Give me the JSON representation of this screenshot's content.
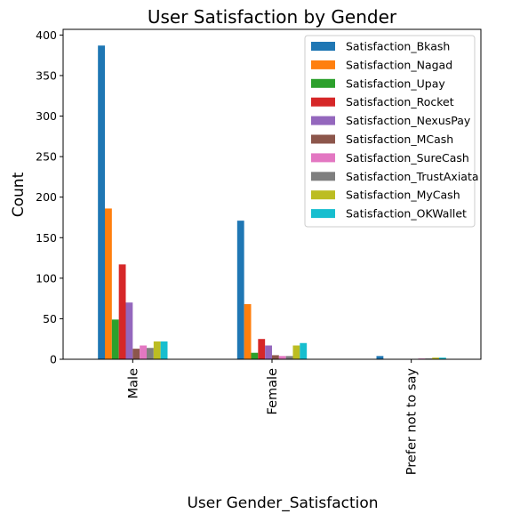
{
  "chart_data": {
    "type": "bar",
    "title": "User Satisfaction by Gender",
    "xlabel": "User Gender_Satisfaction",
    "ylabel": "Count",
    "categories": [
      "Male",
      "Female",
      "Prefer not to say"
    ],
    "ylim": [
      0,
      407
    ],
    "yticks": [
      0,
      50,
      100,
      150,
      200,
      250,
      300,
      350,
      400
    ],
    "grid": false,
    "legend_position": "top-right",
    "series": [
      {
        "name": "Satisfaction_Bkash",
        "color": "#1f77b4",
        "values": [
          387,
          171,
          4
        ]
      },
      {
        "name": "Satisfaction_Nagad",
        "color": "#ff7f0e",
        "values": [
          186,
          68,
          0
        ]
      },
      {
        "name": "Satisfaction_Upay",
        "color": "#2ca02c",
        "values": [
          49,
          8,
          0
        ]
      },
      {
        "name": "Satisfaction_Rocket",
        "color": "#d62728",
        "values": [
          117,
          25,
          0
        ]
      },
      {
        "name": "Satisfaction_NexusPay",
        "color": "#9467bd",
        "values": [
          70,
          17,
          0
        ]
      },
      {
        "name": "Satisfaction_MCash",
        "color": "#8c564b",
        "values": [
          13,
          5,
          0
        ]
      },
      {
        "name": "Satisfaction_SureCash",
        "color": "#e377c2",
        "values": [
          17,
          4,
          1
        ]
      },
      {
        "name": "Satisfaction_TrustAxiata",
        "color": "#7f7f7f",
        "values": [
          14,
          4,
          1
        ]
      },
      {
        "name": "Satisfaction_MyCash",
        "color": "#bcbd22",
        "values": [
          22,
          17,
          2
        ]
      },
      {
        "name": "Satisfaction_OKWallet",
        "color": "#17becf",
        "values": [
          22,
          20,
          2
        ]
      }
    ]
  }
}
